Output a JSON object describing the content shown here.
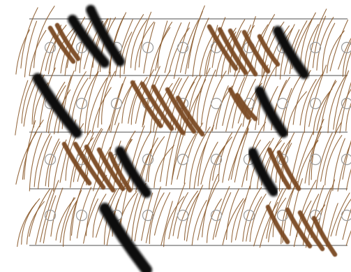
{
  "figure": {
    "kind": "hair strand and follicle illustration",
    "background_color": "#ffffff",
    "rule_line_color": "#8a8a8a",
    "fine_hair_color": "#8b5a2b",
    "follicle_outline_color": "#9a9a9a",
    "thick_hair_color": "#7a4a22",
    "dark_hair_color": "#0f0f0f",
    "rows": 4,
    "follicles_per_row": 10
  }
}
